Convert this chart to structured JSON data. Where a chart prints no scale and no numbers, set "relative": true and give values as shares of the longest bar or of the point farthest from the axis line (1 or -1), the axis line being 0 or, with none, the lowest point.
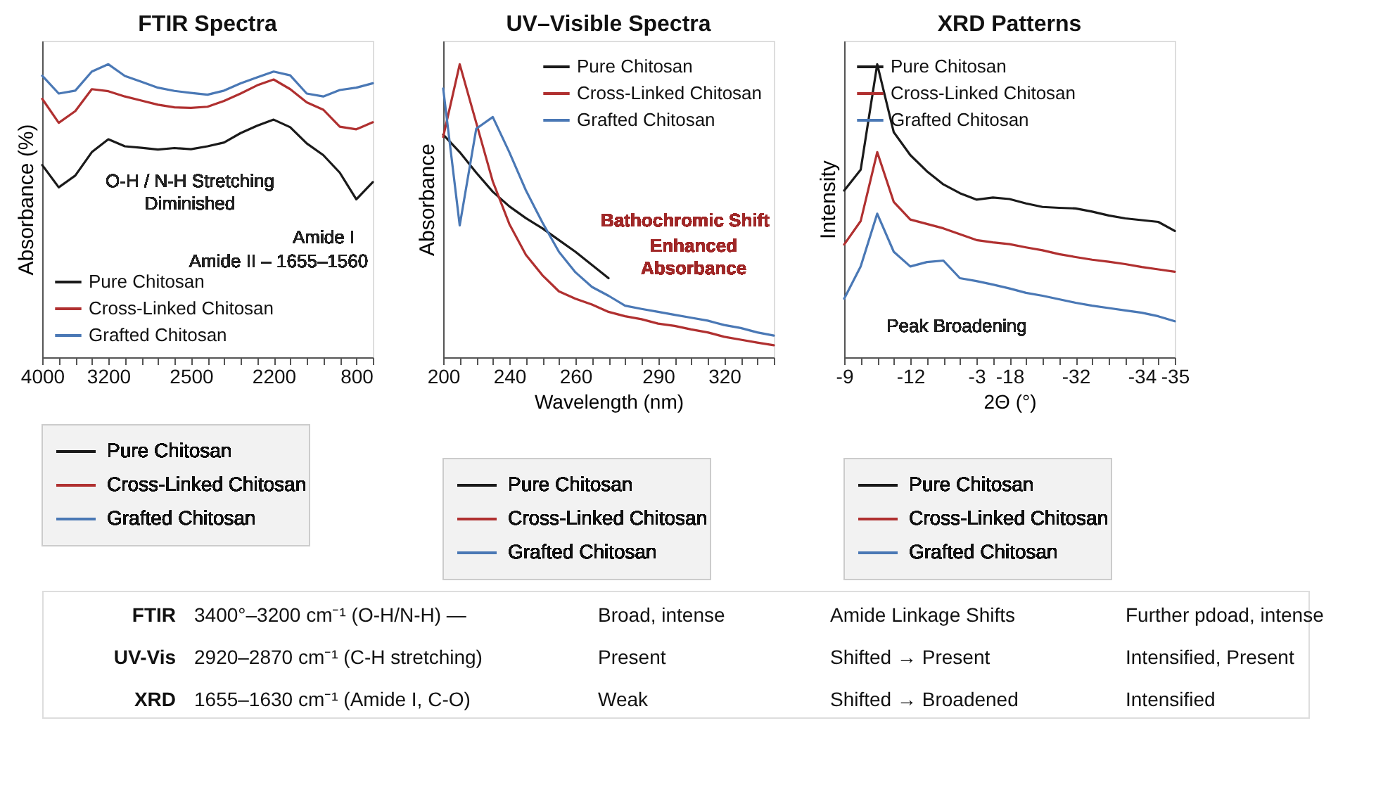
{
  "chart_data": [
    {
      "type": "line",
      "title": "FTIR Spectra",
      "ylabel": "Absorbance (%)",
      "relative": true,
      "legend": "bottom left",
      "categories": [
        "4000",
        null,
        null,
        null,
        "3200",
        null,
        null,
        null,
        null,
        "2500",
        null,
        null,
        null,
        null,
        "2200",
        null,
        null,
        null,
        null,
        "800",
        null
      ],
      "series": [
        {
          "name": "Pure Chitosan",
          "color": "#1a1a1a",
          "values": [
            0.656,
            0.58,
            0.62,
            0.7,
            0.744,
            0.72,
            0.715,
            0.709,
            0.714,
            0.71,
            0.72,
            0.733,
            0.765,
            0.79,
            0.811,
            0.785,
            0.73,
            0.69,
            0.63,
            0.539,
            0.598
          ]
        },
        {
          "name": "Cross-Linked Chitosan",
          "color": "#b03030",
          "values": [
            0.882,
            0.8,
            0.84,
            0.915,
            0.908,
            0.89,
            0.876,
            0.862,
            0.853,
            0.851,
            0.855,
            0.875,
            0.9,
            0.928,
            0.948,
            0.915,
            0.87,
            0.845,
            0.787,
            0.778,
            0.802
          ]
        },
        {
          "name": "Grafted Chitosan",
          "color": "#4a78b5",
          "values": [
            0.961,
            0.9,
            0.91,
            0.975,
            1.0,
            0.96,
            0.94,
            0.92,
            0.909,
            0.902,
            0.896,
            0.91,
            0.935,
            0.955,
            0.975,
            0.962,
            0.9,
            0.89,
            0.912,
            0.92,
            0.935
          ]
        }
      ],
      "annotations": [
        "O-H / N-H Stretching",
        "Diminished",
        "Amide I",
        "Amide II – 1655–1560"
      ]
    },
    {
      "type": "line",
      "title": "UV–Visible Spectra",
      "xlabel": "Wavelength (nm)",
      "ylabel": "Absorbance",
      "relative": true,
      "legend": "top right",
      "categories": [
        "200",
        null,
        null,
        null,
        "240",
        null,
        null,
        null,
        "260",
        null,
        null,
        null,
        null,
        "290",
        null,
        null,
        null,
        "320",
        null,
        null,
        null
      ],
      "series": [
        {
          "name": "Pure Chitosan",
          "color": "#1a1a1a",
          "values": [
            0.76,
            0.7,
            0.63,
            0.565,
            0.515,
            0.475,
            0.44,
            0.4,
            0.36,
            0.315,
            0.27,
            null,
            null,
            null,
            null,
            null,
            null,
            null,
            null,
            null,
            null
          ]
        },
        {
          "name": "Cross-Linked Chitosan",
          "color": "#b03030",
          "values": [
            0.752,
            1.0,
            0.8,
            0.6,
            0.455,
            0.35,
            0.28,
            0.225,
            0.2,
            0.18,
            0.155,
            0.14,
            0.13,
            0.115,
            0.107,
            0.095,
            0.085,
            0.07,
            0.06,
            0.05,
            0.041
          ]
        },
        {
          "name": "Grafted Chitosan",
          "color": "#4a78b5",
          "values": [
            0.917,
            0.45,
            0.78,
            0.82,
            0.7,
            0.57,
            0.46,
            0.36,
            0.29,
            0.24,
            0.21,
            0.176,
            0.165,
            0.155,
            0.145,
            0.135,
            0.125,
            0.11,
            0.1,
            0.085,
            0.074
          ]
        }
      ],
      "annotations": [
        "Bathochromic Shift",
        "Enhanced",
        "Absorbance"
      ]
    },
    {
      "type": "line",
      "title": "XRD Patterns",
      "xlabel": "2Θ (°)",
      "ylabel": "Intensity",
      "relative": true,
      "legend": "top left",
      "categories": [
        "-9",
        null,
        null,
        null,
        "-12",
        null,
        null,
        null,
        "-3",
        null,
        "-18",
        null,
        null,
        null,
        "-32",
        null,
        null,
        null,
        "-34",
        null,
        "-35"
      ],
      "series": [
        {
          "name": "Pure Chitosan",
          "color": "#1a1a1a",
          "values": [
            0.569,
            0.64,
            1.0,
            0.768,
            0.69,
            0.635,
            0.59,
            0.56,
            0.538,
            0.545,
            0.54,
            0.525,
            0.513,
            0.51,
            0.508,
            0.497,
            0.484,
            0.474,
            0.468,
            0.462,
            0.431
          ]
        },
        {
          "name": "Cross-Linked Chitosan",
          "color": "#b03030",
          "values": [
            0.385,
            0.465,
            0.7,
            0.53,
            0.47,
            0.455,
            0.44,
            0.42,
            0.4,
            0.392,
            0.386,
            0.375,
            0.365,
            0.352,
            0.342,
            0.333,
            0.326,
            0.318,
            0.308,
            0.3,
            0.292
          ]
        },
        {
          "name": "Grafted Chitosan",
          "color": "#4a78b5",
          "values": [
            0.2,
            0.31,
            0.49,
            0.36,
            0.31,
            0.325,
            0.33,
            0.27,
            0.26,
            0.248,
            0.235,
            0.22,
            0.21,
            0.198,
            0.186,
            0.176,
            0.168,
            0.16,
            0.152,
            0.14,
            0.123
          ]
        }
      ],
      "annotations": [
        "Peak Broadening"
      ]
    },
    {
      "type": "other",
      "annotations": [
        "FTIR",
        "3400°–3200 cm⁻¹ (O-H/N-H) —",
        "Broad, intense",
        "Amide Linkage Shifts",
        "Further pdoad, intense",
        "UV-Vis",
        "2920–2870 cm⁻¹ (C-H stretching)",
        "Present",
        "Shifted → Present",
        "Intensified, Present",
        "XRD",
        "1655–1630 cm⁻¹ (Amide I, C-O)",
        "Weak",
        "Shifted → Broadened",
        "Intensified"
      ]
    }
  ]
}
